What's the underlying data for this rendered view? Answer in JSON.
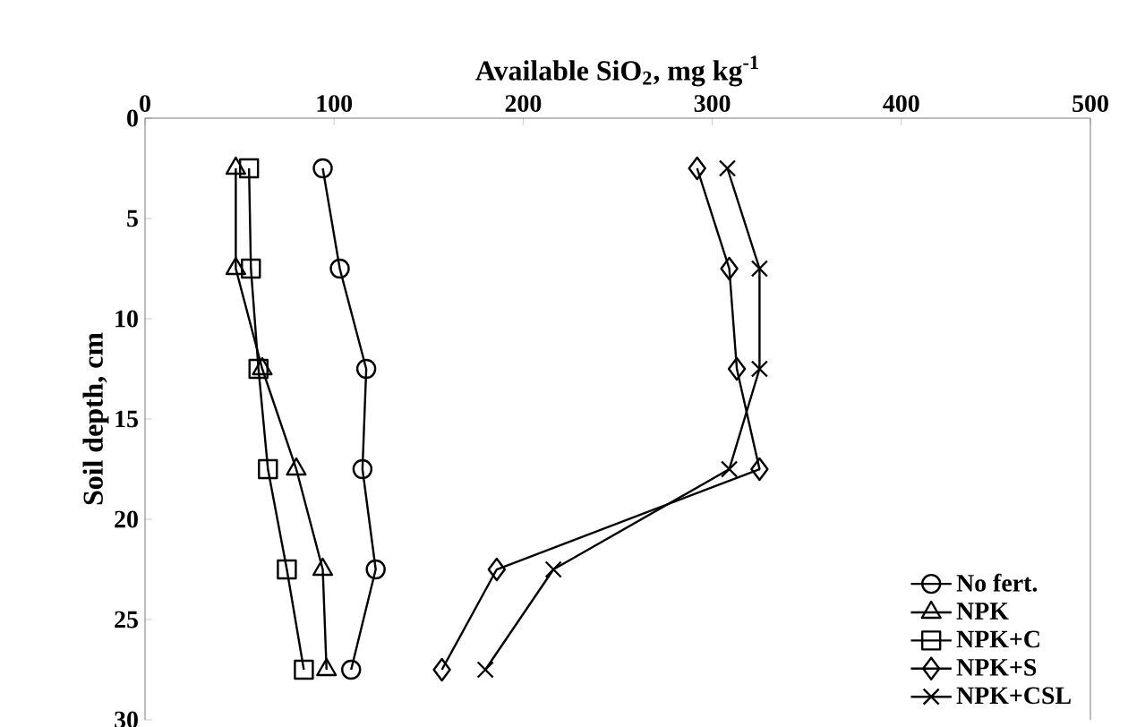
{
  "chart_data": {
    "type": "line",
    "xlabel": "Available SiO$_{2}$, mg kg$^{-1}$",
    "ylabel": "Soil depth, cm",
    "xlim": [
      0,
      500
    ],
    "xticks": [
      0,
      100,
      200,
      300,
      400,
      500
    ],
    "ylim": [
      30,
      0
    ],
    "yticks": [
      0,
      5,
      10,
      15,
      20,
      25,
      30
    ],
    "legend": "bottom right",
    "grid": false,
    "line_style": "solid",
    "series": [
      {
        "name": "No fert.",
        "color": "#000000",
        "marker": "circle",
        "x": [
          94,
          103,
          117,
          115,
          122,
          109
        ],
        "values": [
          2.5,
          7.5,
          12.5,
          17.5,
          22.5,
          27.5
        ]
      },
      {
        "name": "NPK",
        "color": "#000000",
        "marker": "triangle",
        "x": [
          48,
          48,
          62,
          80,
          94,
          96
        ],
        "values": [
          2.5,
          7.5,
          12.5,
          17.5,
          22.5,
          27.5
        ]
      },
      {
        "name": "NPK+C",
        "color": "#000000",
        "marker": "square",
        "x": [
          55,
          56,
          60,
          65,
          75,
          84
        ],
        "values": [
          2.5,
          7.5,
          12.5,
          17.5,
          22.5,
          27.5
        ]
      },
      {
        "name": "NPK+S",
        "color": "#000000",
        "marker": "diamond",
        "x": [
          292,
          309,
          313,
          325,
          186,
          157
        ],
        "values": [
          2.5,
          7.5,
          12.5,
          17.5,
          22.5,
          27.5
        ]
      },
      {
        "name": "NPK+CSL",
        "color": "#000000",
        "marker": "cross",
        "x": [
          308,
          325,
          325,
          309,
          216,
          180
        ],
        "values": [
          2.5,
          7.5,
          12.5,
          17.5,
          22.5,
          27.5
        ]
      }
    ]
  }
}
